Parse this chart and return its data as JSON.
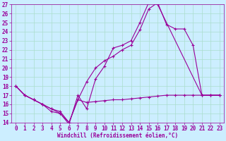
{
  "xlabel": "Windchill (Refroidissement éolien,°C)",
  "bg_color": "#cceeff",
  "grid_color": "#aaddcc",
  "line_color": "#990099",
  "xlim": [
    -0.5,
    23.5
  ],
  "ylim": [
    14,
    27
  ],
  "xticks": [
    0,
    1,
    2,
    3,
    4,
    5,
    6,
    7,
    8,
    9,
    10,
    11,
    12,
    13,
    14,
    15,
    16,
    17,
    18,
    19,
    20,
    21,
    22,
    23
  ],
  "yticks": [
    14,
    15,
    16,
    17,
    18,
    19,
    20,
    21,
    22,
    23,
    24,
    25,
    26,
    27
  ],
  "s0_x": [
    0,
    1,
    2,
    3,
    4,
    5,
    6,
    7,
    8,
    9,
    10,
    11,
    12,
    13,
    14,
    15,
    16,
    21,
    22,
    23
  ],
  "s0_y": [
    18,
    17,
    16.5,
    16,
    15.5,
    15.0,
    13.8,
    17.0,
    15.5,
    18.8,
    20.2,
    22.2,
    22.5,
    23.0,
    25.0,
    27.2,
    27.0,
    17.0,
    17.0,
    17.0
  ],
  "s1_x": [
    0,
    1,
    2,
    3,
    4,
    5,
    6,
    7,
    8,
    9,
    10,
    11,
    12,
    13,
    14,
    15,
    16,
    17,
    18,
    19,
    20,
    21,
    22,
    23
  ],
  "s1_y": [
    18,
    17,
    16.5,
    16,
    15.5,
    15.2,
    14.0,
    16.5,
    18.5,
    20.0,
    20.8,
    21.3,
    22.0,
    22.5,
    24.2,
    26.5,
    27.2,
    24.8,
    24.3,
    24.3,
    22.5,
    17.0,
    17.0,
    17.0
  ],
  "s2_x": [
    0,
    1,
    2,
    3,
    4,
    5,
    6,
    7,
    8,
    9,
    10,
    11,
    12,
    13,
    14,
    15,
    16,
    17,
    18,
    19,
    20,
    21,
    22,
    23
  ],
  "s2_y": [
    18,
    17,
    16.5,
    16.0,
    15.2,
    15.0,
    14.0,
    16.5,
    16.2,
    16.3,
    16.4,
    16.5,
    16.5,
    16.6,
    16.7,
    16.8,
    16.9,
    17.0,
    17.0,
    17.0,
    17.0,
    17.0,
    17.0,
    17.0
  ],
  "tick_fontsize": 5.5,
  "label_fontsize": 5.5
}
